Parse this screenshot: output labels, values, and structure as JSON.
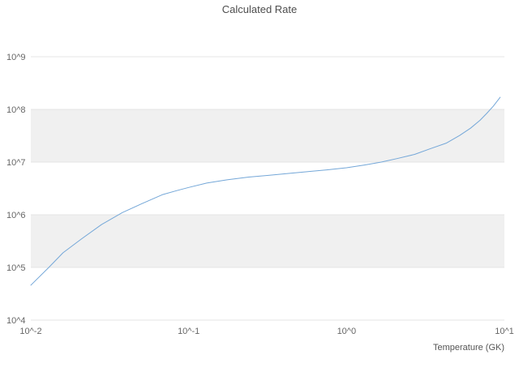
{
  "chart_data": {
    "type": "line",
    "title": "Calculated Rate",
    "xlabel": "Temperature (GK)",
    "ylabel": "",
    "x_scale": "log",
    "y_scale": "log",
    "xlim": [
      0.01,
      10
    ],
    "ylim": [
      10000.0,
      1000000000.0
    ],
    "x_ticks": [
      "10^-2",
      "10^-1",
      "10^0",
      "10^1"
    ],
    "y_ticks": [
      "10^4",
      "10^5",
      "10^6",
      "10^7",
      "10^8",
      "10^9"
    ],
    "grid": true,
    "legend": "none",
    "line_color": "#74a7d8",
    "band_color": "#f0f0f0",
    "grid_color": "#e5e5e5",
    "tick_color": "#666666",
    "title_color": "#4d4d4d",
    "series_name": "Calculated Rate",
    "points": [
      [
        0.01,
        46000.0
      ],
      [
        0.013,
        100000.0
      ],
      [
        0.016,
        190000.0
      ],
      [
        0.021,
        350000.0
      ],
      [
        0.028,
        650000.0
      ],
      [
        0.038,
        1100000.0
      ],
      [
        0.05,
        1600000.0
      ],
      [
        0.068,
        2400000.0
      ],
      [
        0.085,
        2900000.0
      ],
      [
        0.1,
        3300000.0
      ],
      [
        0.13,
        4000000.0
      ],
      [
        0.175,
        4600000.0
      ],
      [
        0.24,
        5200000.0
      ],
      [
        0.32,
        5600000.0
      ],
      [
        0.43,
        6100000.0
      ],
      [
        0.57,
        6600000.0
      ],
      [
        0.75,
        7100000.0
      ],
      [
        1.0,
        7800000.0
      ],
      [
        1.3,
        8800000.0
      ],
      [
        1.66,
        10000000.0
      ],
      [
        2.1,
        11700000.0
      ],
      [
        2.7,
        14000000.0
      ],
      [
        3.4,
        18000000.0
      ],
      [
        4.3,
        23000000.0
      ],
      [
        5.2,
        32000000.0
      ],
      [
        6.1,
        44000000.0
      ],
      [
        7.0,
        62000000.0
      ],
      [
        7.7,
        83000000.0
      ],
      [
        8.5,
        115000000.0
      ],
      [
        9.4,
        170000000.0
      ]
    ]
  }
}
